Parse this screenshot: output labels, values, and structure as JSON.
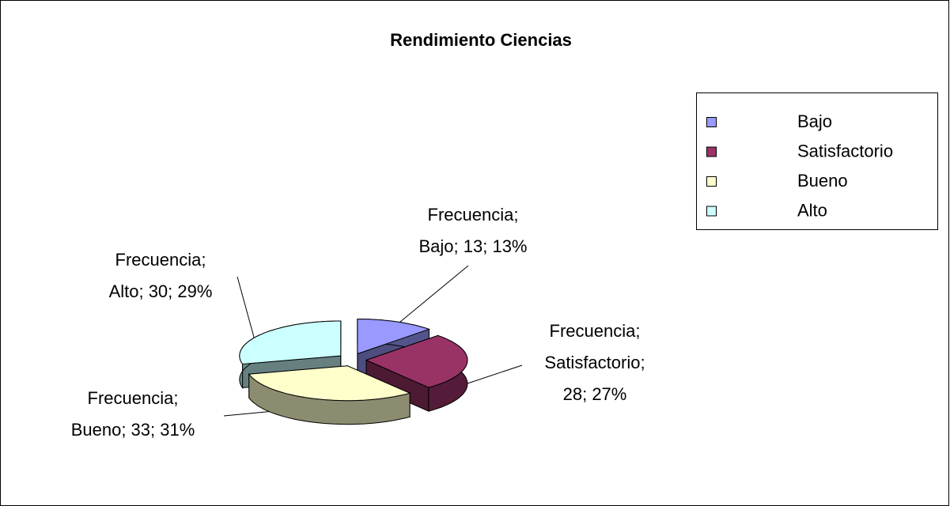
{
  "chart_data": {
    "type": "pie",
    "title": "Rendimiento Ciencias",
    "series_name": "Frecuencia",
    "categories": [
      "Bajo",
      "Satisfactorio",
      "Bueno",
      "Alto"
    ],
    "values": [
      13,
      28,
      33,
      30
    ],
    "colors": [
      "#9999ff",
      "#993366",
      "#ffffcc",
      "#ccffff"
    ],
    "data_labels": [
      [
        "Frecuencia;",
        "Bajo; 13; 13%"
      ],
      [
        "Frecuencia;",
        "Satisfactorio;",
        "28; 27%"
      ],
      [
        "Frecuencia;",
        "Bueno; 33; 31%"
      ],
      [
        "Frecuencia;",
        "Alto; 30; 29%"
      ]
    ],
    "legend": "right",
    "exploded": true,
    "three_d": true
  }
}
